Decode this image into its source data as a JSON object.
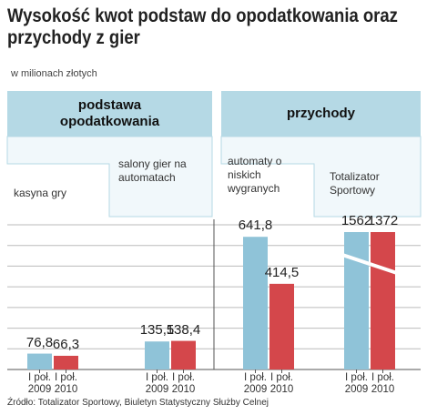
{
  "chart_data": {
    "type": "bar",
    "title": "Wysokość kwot podstaw do opodatkowania oraz przychody z gier",
    "subtitle": "w milionach złotych",
    "category_groups": [
      {
        "name": "podstawa opodatkowania",
        "categories": [
          0,
          1
        ]
      },
      {
        "name": "przychody",
        "categories": [
          2,
          3
        ]
      }
    ],
    "categories": [
      "kasyna gry",
      "salony gier na automa­tach",
      "automaty o niskich wygranych",
      "Totalizator Sportowy"
    ],
    "series": [
      {
        "name": "I poł. 2009",
        "color": "#8fc3d8",
        "values": [
          76.8,
          135.5,
          641.8,
          1562
        ],
        "value_labels": [
          "76,8",
          "135,5",
          "641,8",
          "1562"
        ]
      },
      {
        "name": "I poł. 2010",
        "color": "#d4474b",
        "values": [
          66.3,
          138.4,
          414.5,
          1372
        ],
        "value_labels": [
          "66,3",
          "138,4",
          "414,5",
          "1372"
        ]
      }
    ],
    "ylim": [
      0,
      700
    ],
    "yticks": [
      0,
      100,
      200,
      300,
      400,
      500,
      600,
      700
    ],
    "grid": true,
    "axis_break": true,
    "source": "Źródło: Totalizator Sportowy, Biuletyn Statystyczny Służby Celnej"
  }
}
